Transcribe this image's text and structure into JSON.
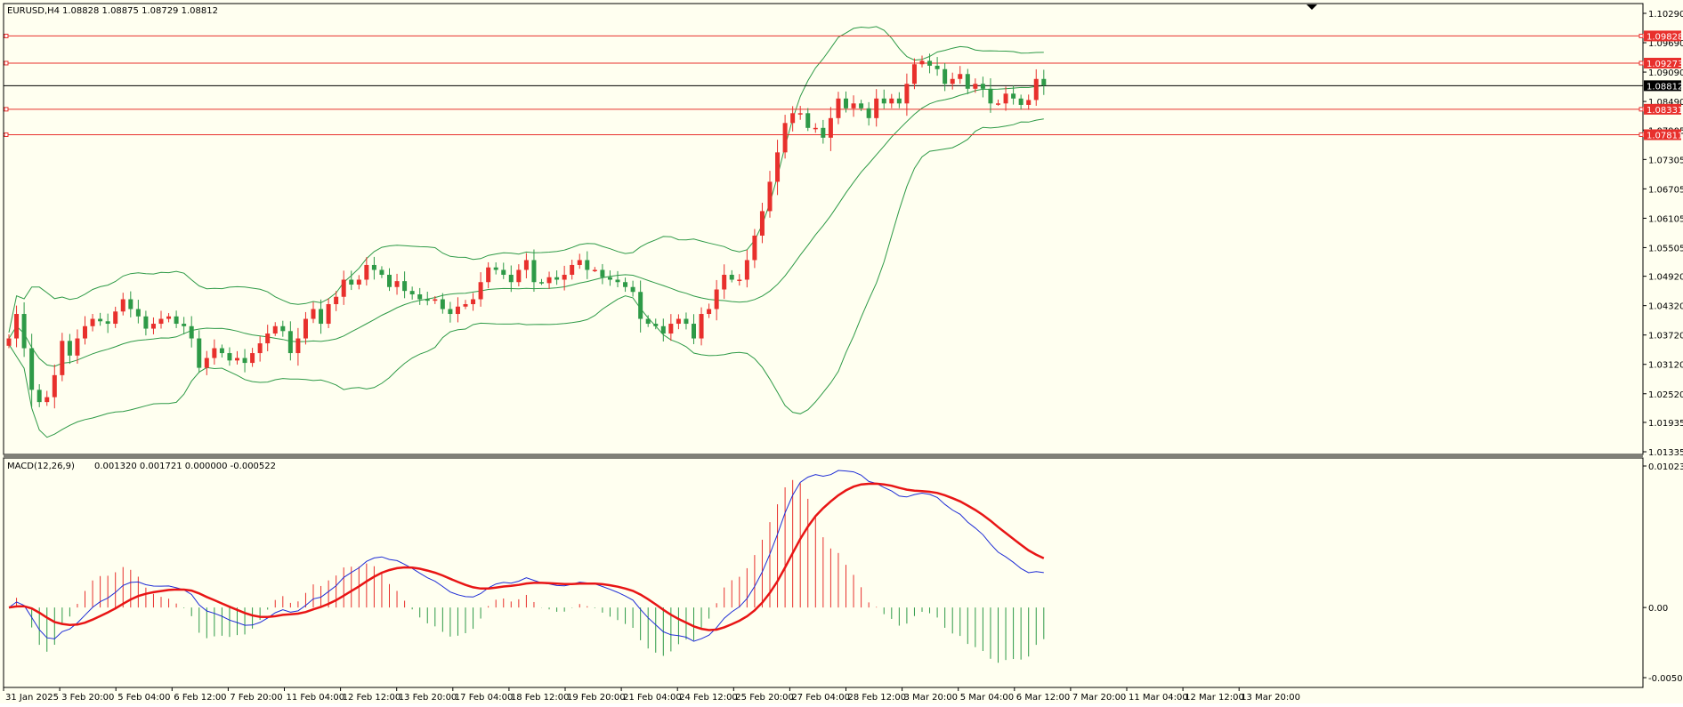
{
  "window": {
    "title": "EURUSD,H4",
    "ohlc": "1.08828 1.08875 1.08729 1.08812"
  },
  "macd_panel": {
    "title": "MACD(12,26,9)",
    "values": "0.001320 0.001721 0.000000 -0.000522"
  },
  "colors": {
    "background": "#fffff0",
    "bull": "#e8302c",
    "bear": "#2e9a47",
    "bands": "#2e9a47",
    "level_line": "#e8302c",
    "price_line": "#000000",
    "macd_main": "#1f2dd6",
    "macd_signal": "#e81515",
    "hist_pos": "#e8302c",
    "hist_neg": "#2e9a47"
  },
  "chart_data": [
    {
      "type": "candlestick",
      "symbol": "EURUSD",
      "timeframe": "H4",
      "title": "EURUSD,H4",
      "ylim": [
        1.01335,
        1.1029
      ],
      "y_ticks": [
        "1.10290",
        "1.09690",
        "1.09090",
        "1.08490",
        "1.07905",
        "1.07305",
        "1.06705",
        "1.06105",
        "1.05505",
        "1.04920",
        "1.04320",
        "1.03720",
        "1.03120",
        "1.02520",
        "1.01935",
        "1.01335"
      ],
      "x_ticks": [
        "31 Jan 2025",
        "3 Feb 20:00",
        "5 Feb 04:00",
        "6 Feb 12:00",
        "7 Feb 20:00",
        "11 Feb 04:00",
        "12 Feb 12:00",
        "13 Feb 20:00",
        "17 Feb 04:00",
        "18 Feb 12:00",
        "19 Feb 20:00",
        "21 Feb 04:00",
        "24 Feb 12:00",
        "25 Feb 20:00",
        "27 Feb 04:00",
        "28 Feb 12:00",
        "3 Mar 20:00",
        "5 Mar 04:00",
        "6 Mar 12:00",
        "7 Mar 20:00",
        "11 Mar 04:00",
        "12 Mar 12:00",
        "13 Mar 20:00"
      ],
      "close_path": [
        1.0365,
        1.0415,
        1.0345,
        1.026,
        1.0235,
        1.0245,
        1.029,
        1.036,
        1.033,
        1.0365,
        1.039,
        1.0405,
        1.04,
        1.0395,
        1.042,
        1.0445,
        1.0425,
        1.041,
        1.0385,
        1.0395,
        1.0405,
        1.041,
        1.0395,
        1.039,
        1.0365,
        1.0305,
        1.0325,
        1.0345,
        1.0335,
        1.032,
        1.0325,
        1.0315,
        1.0335,
        1.0355,
        1.0375,
        1.039,
        1.038,
        1.0335,
        1.0365,
        1.0405,
        1.0425,
        1.0395,
        1.0435,
        1.045,
        1.0485,
        1.0475,
        1.0485,
        1.0515,
        1.0505,
        1.0495,
        1.047,
        1.0482,
        1.0462,
        1.0455,
        1.0445,
        1.0442,
        1.0445,
        1.0425,
        1.0415,
        1.043,
        1.0435,
        1.0445,
        1.048,
        1.051,
        1.0505,
        1.0495,
        1.048,
        1.0505,
        1.0525,
        1.048,
        1.0478,
        1.049,
        1.0485,
        1.0495,
        1.0515,
        1.0525,
        1.0505,
        1.0505,
        1.049,
        1.0485,
        1.048,
        1.047,
        1.046,
        1.0405,
        1.0395,
        1.039,
        1.0375,
        1.0395,
        1.0405,
        1.0395,
        1.0365,
        1.0415,
        1.0425,
        1.0465,
        1.0495,
        1.0485,
        1.0485,
        1.0525,
        1.0575,
        1.0625,
        1.0685,
        1.0745,
        1.0805,
        1.0825,
        1.0825,
        1.0795,
        1.0795,
        1.0775,
        1.0815,
        1.0855,
        1.0835,
        1.0845,
        1.0835,
        1.0815,
        1.0855,
        1.0845,
        1.0855,
        1.0845,
        1.0885,
        1.0925,
        1.0932,
        1.0922,
        1.0915,
        1.0885,
        1.0895,
        1.0905,
        1.0875,
        1.0885,
        1.0875,
        1.0845,
        1.0845,
        1.0865,
        1.0855,
        1.0842,
        1.0852,
        1.0895,
        1.0882
      ],
      "bollinger_bands": true,
      "horizontal_levels": [
        {
          "label": "1.09828",
          "value": 1.09828
        },
        {
          "label": "1.09273",
          "value": 1.09273
        },
        {
          "label": "1.08331",
          "value": 1.08331
        },
        {
          "label": "1.07811",
          "value": 1.07811
        }
      ],
      "current_price": {
        "label": "1.08812",
        "value": 1.08812
      }
    },
    {
      "type": "line",
      "title": "MACD(12,26,9)",
      "ylim": [
        -0.005074,
        0.010236
      ],
      "y_ticks": [
        "0.010236",
        "0.00",
        "-0.005074"
      ],
      "series": [
        {
          "color": "#1f2dd6",
          "style": "thin"
        },
        {
          "color": "#e81515",
          "style": "thick"
        }
      ],
      "histogram": true
    }
  ]
}
